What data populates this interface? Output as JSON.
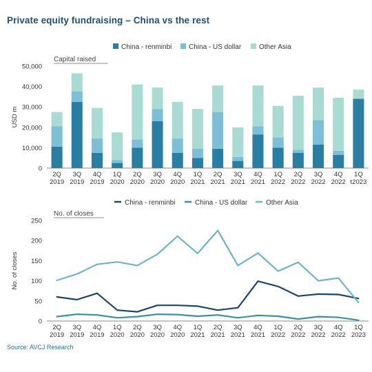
{
  "title": "Private equity fundraising – China vs the rest",
  "source": "Source: AVCJ Research",
  "colors": {
    "renminbi": "#2a7da3",
    "usd": "#7cbfd6",
    "other": "#a9dbd2",
    "line_renminbi": "#1d4566",
    "line_usd": "#3a8fa6",
    "line_other": "#6fb3c9"
  },
  "chart_data": [
    {
      "type": "bar",
      "stacked": true,
      "subtitle": "Capital raised",
      "ylabel": "USD m",
      "ylim": [
        0,
        50000
      ],
      "yticks": [
        "0",
        "10,000",
        "20,000",
        "30,000",
        "40,000",
        "50,000"
      ],
      "legend_position": "top",
      "categories": [
        "2Q 2019",
        "3Q 2019",
        "4Q 2019",
        "1Q 2020",
        "2Q 2020",
        "3Q 2020",
        "4Q 2020",
        "1Q 2021",
        "2Q 2021",
        "3Q 2021",
        "4Q 2021",
        "1Q 2022",
        "2Q 2022",
        "3Q 2022",
        "4Q 2022",
        "1Q t2023"
      ],
      "series": [
        {
          "name": "China - renminbi",
          "values": [
            10500,
            32500,
            7500,
            2500,
            10000,
            23000,
            7500,
            5000,
            9500,
            3500,
            16500,
            10000,
            7500,
            11500,
            6500,
            34000
          ]
        },
        {
          "name": "China - US dollar",
          "values": [
            10000,
            5000,
            7000,
            1500,
            4000,
            6000,
            7000,
            4500,
            18000,
            2000,
            4000,
            5000,
            1500,
            12000,
            2000,
            0
          ]
        },
        {
          "name": "Other Asia",
          "values": [
            7000,
            9000,
            15000,
            13500,
            27000,
            10500,
            18000,
            19500,
            13000,
            14500,
            20000,
            15500,
            26500,
            16000,
            26000,
            4500
          ]
        }
      ]
    },
    {
      "type": "line",
      "subtitle": "No. of closes",
      "ylabel": "No. of closes",
      "ylim": [
        0,
        250
      ],
      "yticks": [
        "0",
        "50",
        "100",
        "150",
        "200",
        "250"
      ],
      "legend_position": "top",
      "categories": [
        "2Q 2019",
        "3Q 2019",
        "4Q 2019",
        "1Q 2020",
        "2Q 2020",
        "3Q 2020",
        "4Q 2020",
        "1Q 2021",
        "2Q 2021",
        "3Q 2021",
        "4Q 2021",
        "1Q 2022",
        "2Q 2022",
        "3Q 2022",
        "4Q 2022",
        "1Q 2023"
      ],
      "series": [
        {
          "name": "China - renminbi",
          "values": [
            60,
            53,
            69,
            27,
            23,
            39,
            39,
            37,
            27,
            33,
            99,
            86,
            62,
            67,
            66,
            56
          ]
        },
        {
          "name": "China - US dollar",
          "values": [
            11,
            17,
            15,
            8,
            11,
            17,
            16,
            12,
            15,
            8,
            14,
            12,
            5,
            11,
            9,
            2
          ]
        },
        {
          "name": "Other Asia",
          "values": [
            101,
            117,
            141,
            147,
            138,
            166,
            211,
            168,
            225,
            138,
            169,
            124,
            146,
            100,
            107,
            46
          ]
        }
      ]
    }
  ]
}
